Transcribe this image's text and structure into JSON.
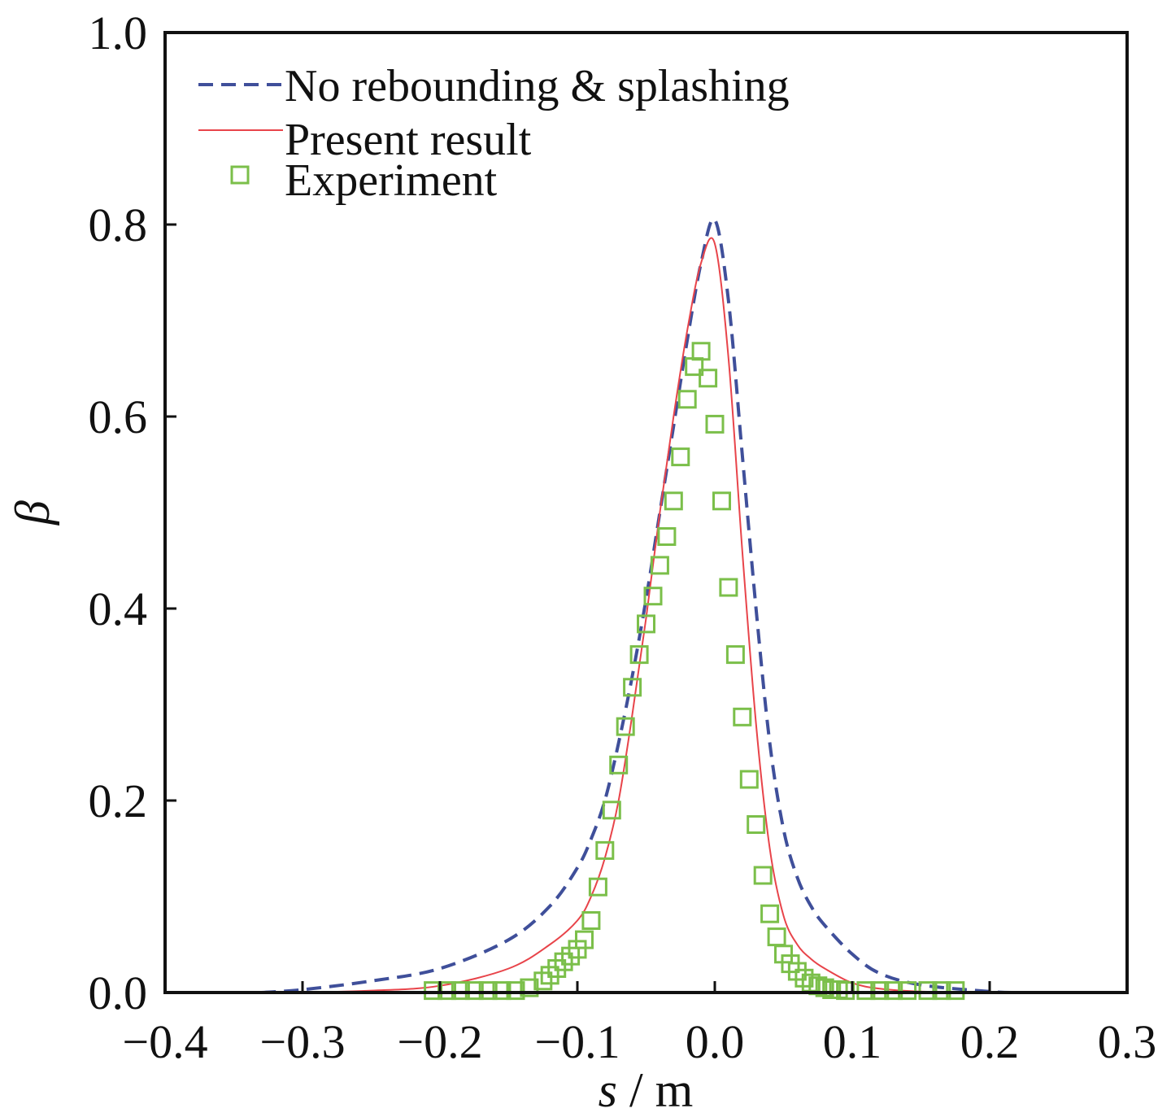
{
  "chart_data": {
    "type": "line",
    "xlim": [
      -0.4,
      0.3
    ],
    "ylim": [
      0.0,
      1.0
    ],
    "xticks": [
      "−0.4",
      "−0.3",
      "−0.2",
      "−0.1",
      "0.0",
      "0.1",
      "0.2",
      "0.3"
    ],
    "xtick_values": [
      -0.4,
      -0.3,
      -0.2,
      -0.1,
      0.0,
      0.1,
      0.2,
      0.3
    ],
    "yticks": [
      "0.0",
      "0.2",
      "0.4",
      "0.6",
      "0.8",
      "1.0"
    ],
    "ytick_values": [
      0.0,
      0.2,
      0.4,
      0.6,
      0.8,
      1.0
    ],
    "xlabel_var": "s",
    "xlabel_unit": " / m",
    "ylabel": "β",
    "grid": false,
    "legend_position": "top-left",
    "series": [
      {
        "name": "No rebounding & splashing",
        "style": "dashed",
        "color": "#3f4f9a",
        "x": [
          -0.33,
          -0.3,
          -0.25,
          -0.2,
          -0.15,
          -0.12,
          -0.1,
          -0.09,
          -0.08,
          -0.07,
          -0.06,
          -0.05,
          -0.04,
          -0.03,
          -0.02,
          -0.01,
          0.0,
          0.01,
          0.02,
          0.03,
          0.04,
          0.05,
          0.06,
          0.07,
          0.08,
          0.1,
          0.12,
          0.15,
          0.2,
          0.22
        ],
        "y": [
          0.0,
          0.003,
          0.012,
          0.025,
          0.055,
          0.09,
          0.13,
          0.16,
          0.2,
          0.26,
          0.33,
          0.41,
          0.5,
          0.59,
          0.68,
          0.76,
          0.805,
          0.72,
          0.56,
          0.4,
          0.26,
          0.17,
          0.12,
          0.09,
          0.07,
          0.04,
          0.02,
          0.008,
          0.001,
          0.0
        ]
      },
      {
        "name": "Present result",
        "style": "solid",
        "color": "#e8444a",
        "x": [
          -0.3,
          -0.25,
          -0.2,
          -0.15,
          -0.12,
          -0.1,
          -0.09,
          -0.08,
          -0.07,
          -0.06,
          -0.05,
          -0.04,
          -0.03,
          -0.02,
          -0.01,
          0.0,
          0.01,
          0.02,
          0.03,
          0.04,
          0.05,
          0.06,
          0.07,
          0.08,
          0.1,
          0.12,
          0.15,
          0.2
        ],
        "y": [
          0.0,
          0.002,
          0.007,
          0.025,
          0.05,
          0.075,
          0.1,
          0.14,
          0.2,
          0.29,
          0.39,
          0.5,
          0.6,
          0.69,
          0.76,
          0.78,
          0.66,
          0.46,
          0.28,
          0.15,
          0.08,
          0.05,
          0.035,
          0.025,
          0.01,
          0.004,
          0.001,
          0.0
        ]
      },
      {
        "name": "Experiment",
        "style": "markers",
        "marker": "square",
        "color": "#7bbf4a",
        "x": [
          -0.205,
          -0.195,
          -0.185,
          -0.175,
          -0.165,
          -0.155,
          -0.145,
          -0.135,
          -0.125,
          -0.12,
          -0.115,
          -0.11,
          -0.105,
          -0.1,
          -0.095,
          -0.09,
          -0.085,
          -0.08,
          -0.075,
          -0.07,
          -0.065,
          -0.06,
          -0.055,
          -0.05,
          -0.045,
          -0.04,
          -0.035,
          -0.03,
          -0.025,
          -0.02,
          -0.015,
          -0.01,
          -0.005,
          0.0,
          0.005,
          0.01,
          0.015,
          0.02,
          0.025,
          0.03,
          0.035,
          0.04,
          0.045,
          0.05,
          0.055,
          0.06,
          0.065,
          0.07,
          0.075,
          0.08,
          0.085,
          0.09,
          0.095,
          0.11,
          0.12,
          0.13,
          0.14,
          0.155,
          0.165,
          0.175
        ],
        "y": [
          0.002,
          0.002,
          0.002,
          0.002,
          0.002,
          0.002,
          0.002,
          0.005,
          0.012,
          0.018,
          0.025,
          0.032,
          0.038,
          0.045,
          0.055,
          0.075,
          0.11,
          0.148,
          0.19,
          0.237,
          0.277,
          0.318,
          0.352,
          0.384,
          0.413,
          0.445,
          0.475,
          0.512,
          0.558,
          0.618,
          0.652,
          0.668,
          0.64,
          0.592,
          0.512,
          0.422,
          0.352,
          0.287,
          0.222,
          0.175,
          0.122,
          0.082,
          0.058,
          0.04,
          0.03,
          0.022,
          0.015,
          0.01,
          0.007,
          0.005,
          0.003,
          0.003,
          0.002,
          0.002,
          0.002,
          0.002,
          0.002,
          0.002,
          0.002,
          0.002
        ]
      }
    ]
  }
}
